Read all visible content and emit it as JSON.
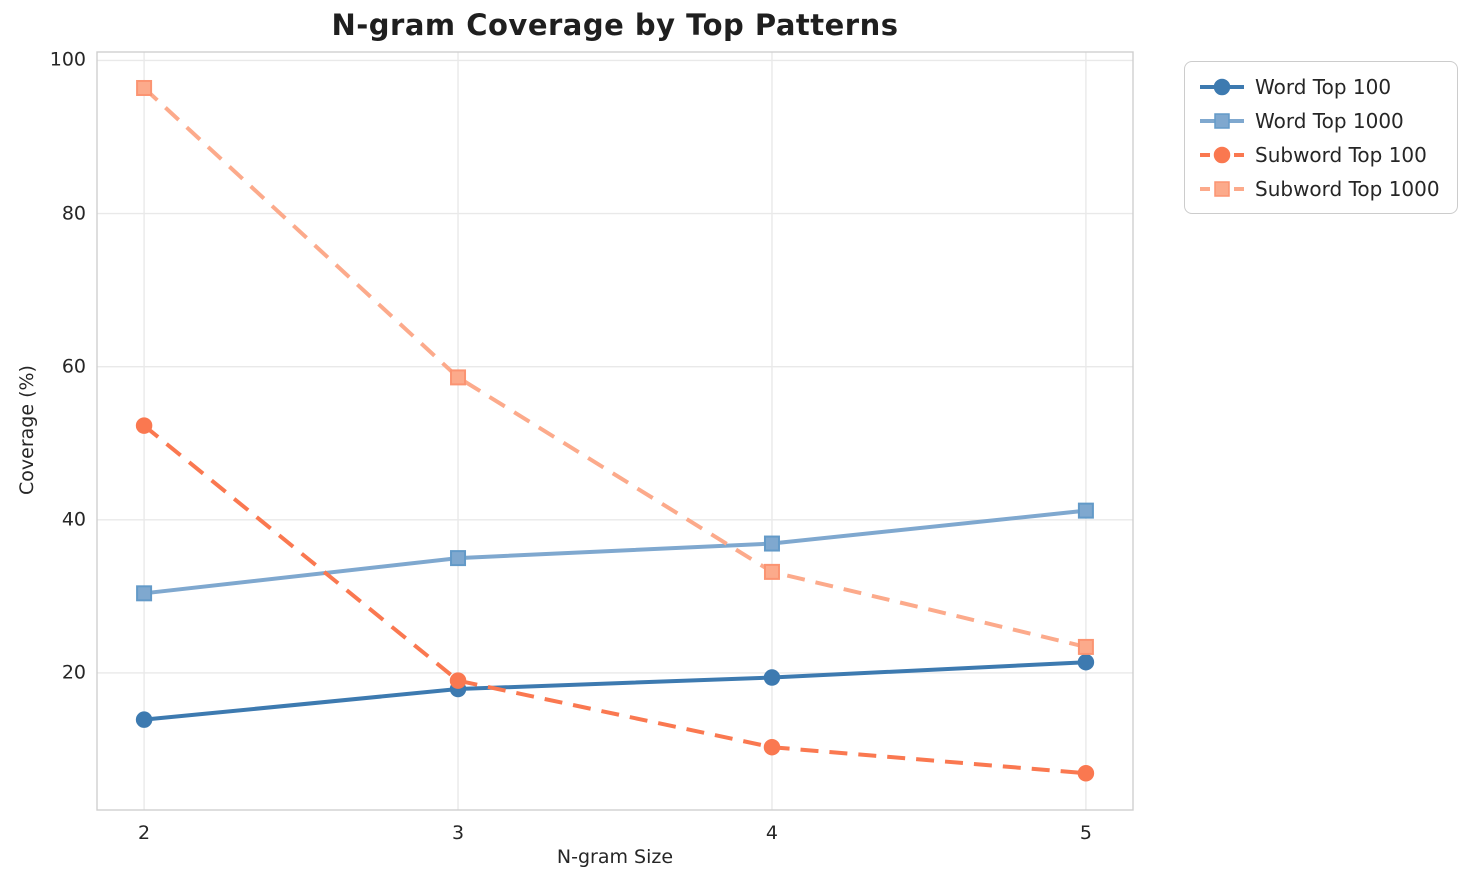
{
  "figure": {
    "background": "#ffffff",
    "plot_background": "#ffffff",
    "grid_color": "#e9e9e9",
    "spine_color": "#cfcfcf",
    "text_color": "#262626",
    "title_color": "#1f1f1f"
  },
  "chart_data": {
    "type": "line",
    "title": "N-gram Coverage by Top Patterns",
    "xlabel": "N-gram Size",
    "ylabel": "Coverage (%)",
    "x": [
      2,
      3,
      4,
      5
    ],
    "xtick_labels": [
      "2",
      "3",
      "4",
      "5"
    ],
    "ytick_values": [
      20,
      40,
      60,
      80,
      100
    ],
    "ytick_labels": [
      "20",
      "40",
      "60",
      "80",
      "100"
    ],
    "xlim": [
      1.85,
      5.15
    ],
    "ylim": [
      2.1,
      101.1
    ],
    "grid": true,
    "legend_position": "outside-upper-right",
    "series": [
      {
        "name": "Word Top 100",
        "values": [
          13.9,
          17.9,
          19.4,
          21.4
        ],
        "color": "#3d7ab0",
        "edge_color": "#3d7ab0",
        "marker": "circle",
        "line_style": "solid"
      },
      {
        "name": "Word Top 1000",
        "values": [
          30.4,
          35.0,
          36.9,
          41.2
        ],
        "color": "#7fa8cf",
        "edge_color": "#639ac8",
        "marker": "square",
        "line_style": "solid"
      },
      {
        "name": "Subword Top 100",
        "values": [
          52.3,
          19.0,
          10.3,
          6.9
        ],
        "color": "#fa7850",
        "edge_color": "#fa7850",
        "marker": "circle",
        "line_style": "dashed"
      },
      {
        "name": "Subword Top 1000",
        "values": [
          96.4,
          58.6,
          33.2,
          23.4
        ],
        "color": "#fcaa8b",
        "edge_color": "#fb9472",
        "marker": "square",
        "line_style": "dashed"
      }
    ]
  }
}
